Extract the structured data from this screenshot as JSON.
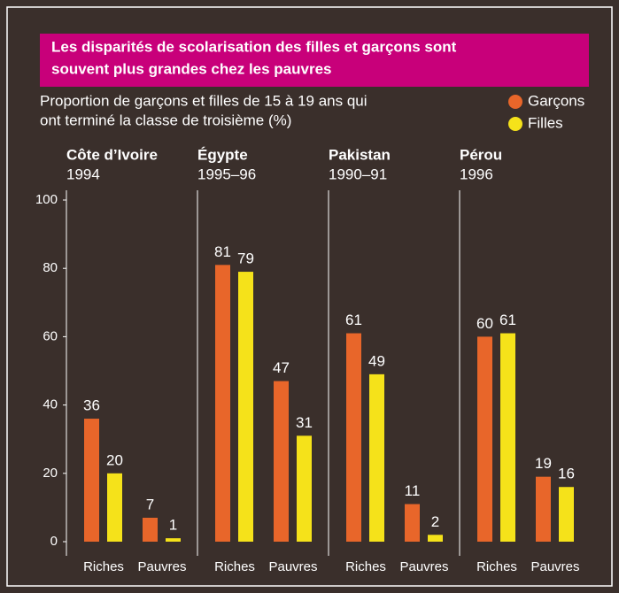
{
  "header": {
    "title": "Les disparités de scolarisation des filles et garçons sont souvent plus grandes chez les pauvres",
    "subtitle": "Proportion de garçons et filles de 15 à 19 ans qui ont terminé la classe de troisième (%)"
  },
  "chart_data": [
    {
      "type": "bar",
      "title": "Côte d’Ivoire",
      "subtitle": "1994",
      "categories": [
        "Riches",
        "Pauvres"
      ],
      "series": [
        {
          "name": "Garçons",
          "color": "#e8662a",
          "values": [
            36,
            7
          ]
        },
        {
          "name": "Filles",
          "color": "#f5e21a",
          "values": [
            20,
            1
          ]
        }
      ],
      "ylim": [
        0,
        100
      ],
      "yticks": [
        0,
        20,
        40,
        60,
        80,
        100
      ]
    },
    {
      "type": "bar",
      "title": "Égypte",
      "subtitle": "1995–96",
      "categories": [
        "Riches",
        "Pauvres"
      ],
      "series": [
        {
          "name": "Garçons",
          "color": "#e8662a",
          "values": [
            81,
            47
          ]
        },
        {
          "name": "Filles",
          "color": "#f5e21a",
          "values": [
            79,
            31
          ]
        }
      ],
      "ylim": [
        0,
        100
      ]
    },
    {
      "type": "bar",
      "title": "Pakistan",
      "subtitle": "1990–91",
      "categories": [
        "Riches",
        "Pauvres"
      ],
      "series": [
        {
          "name": "Garçons",
          "color": "#e8662a",
          "values": [
            61,
            11
          ]
        },
        {
          "name": "Filles",
          "color": "#f5e21a",
          "values": [
            49,
            2
          ]
        }
      ],
      "ylim": [
        0,
        100
      ]
    },
    {
      "type": "bar",
      "title": "Pérou",
      "subtitle": "1996",
      "categories": [
        "Riches",
        "Pauvres"
      ],
      "series": [
        {
          "name": "Garçons",
          "color": "#e8662a",
          "values": [
            60,
            19
          ]
        },
        {
          "name": "Filles",
          "color": "#f5e21a",
          "values": [
            61,
            16
          ]
        }
      ],
      "ylim": [
        0,
        100
      ]
    }
  ]
}
